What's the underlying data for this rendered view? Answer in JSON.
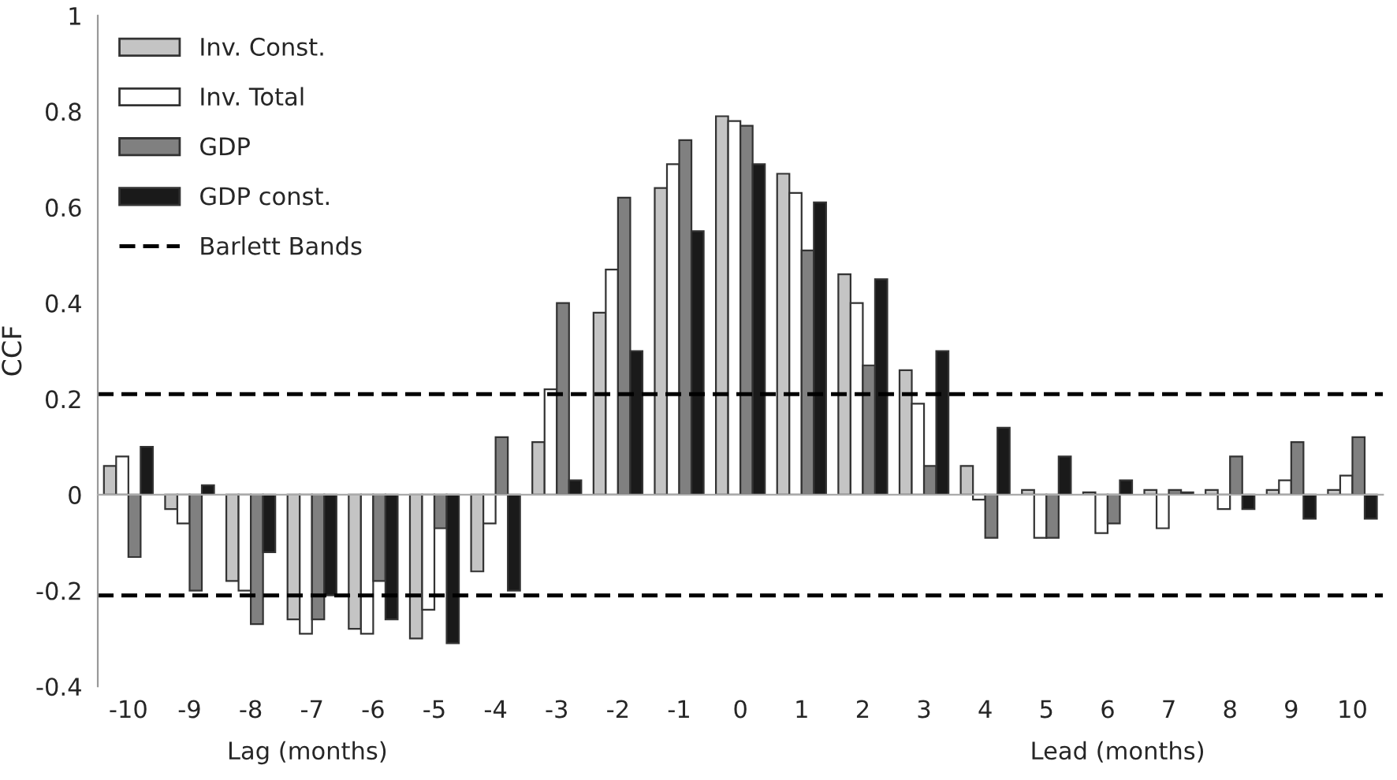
{
  "chart_data": {
    "type": "bar",
    "ylabel": "CCF",
    "categories": [
      "-10",
      "-9",
      "-8",
      "-7",
      "-6",
      "-5",
      "-4",
      "-3",
      "-2",
      "-1",
      "0",
      "1",
      "2",
      "3",
      "4",
      "5",
      "6",
      "7",
      "8",
      "9",
      "10"
    ],
    "series": [
      {
        "name": "Inv. Const.",
        "color": "#c4c4c4",
        "values": [
          0.06,
          -0.03,
          -0.18,
          -0.26,
          -0.28,
          -0.3,
          -0.16,
          0.11,
          0.38,
          0.64,
          0.79,
          0.67,
          0.46,
          0.26,
          0.06,
          0.01,
          0.005,
          0.01,
          0.01,
          0.01,
          0.01
        ]
      },
      {
        "name": "Inv. Total",
        "color": "#ffffff",
        "values": [
          0.08,
          -0.06,
          -0.2,
          -0.29,
          -0.29,
          -0.24,
          -0.06,
          0.22,
          0.47,
          0.69,
          0.78,
          0.63,
          0.4,
          0.19,
          -0.01,
          -0.09,
          -0.08,
          -0.07,
          -0.03,
          0.03,
          0.04
        ]
      },
      {
        "name": "GDP",
        "color": "#808080",
        "values": [
          -0.13,
          -0.2,
          -0.27,
          -0.26,
          -0.18,
          -0.07,
          0.12,
          0.4,
          0.62,
          0.74,
          0.77,
          0.51,
          0.27,
          0.06,
          -0.09,
          -0.09,
          -0.06,
          0.01,
          0.08,
          0.11,
          0.12
        ]
      },
      {
        "name": "GDP const.",
        "color": "#1a1a1a",
        "values": [
          0.1,
          0.02,
          -0.12,
          -0.21,
          -0.26,
          -0.31,
          -0.2,
          0.03,
          0.3,
          0.55,
          0.69,
          0.61,
          0.45,
          0.3,
          0.14,
          0.08,
          0.03,
          0.005,
          -0.03,
          -0.05,
          -0.05
        ]
      }
    ],
    "ylim": [
      -0.4,
      1
    ],
    "yticks": [
      -0.4,
      -0.2,
      0,
      0.2,
      0.4,
      0.6,
      0.8,
      1
    ],
    "ref_lines": [
      {
        "axis": "y",
        "value": 0.21,
        "label": "Barlett Bands",
        "color": "#000000",
        "line_style": "dashed"
      },
      {
        "axis": "y",
        "value": -0.21,
        "label": null,
        "color": "#000000",
        "line_style": "dashed"
      }
    ],
    "annotations": [
      "Lag (months)",
      "Lead (months)"
    ],
    "legend": "top left"
  }
}
